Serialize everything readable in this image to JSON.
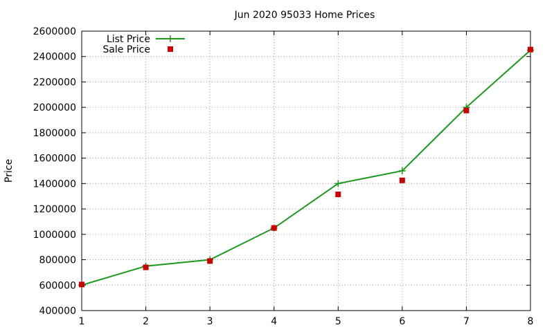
{
  "chart_data": {
    "type": "line",
    "title": "Jun 2020 95033 Home Prices",
    "xlabel": "",
    "ylabel": "Price",
    "x": [
      1,
      2,
      3,
      4,
      5,
      6,
      7,
      8
    ],
    "xlim": [
      1,
      8
    ],
    "ylim": [
      400000,
      2600000
    ],
    "xticks": [
      "1",
      "2",
      "3",
      "4",
      "5",
      "6",
      "7",
      "8"
    ],
    "yticks": [
      "400000",
      "600000",
      "800000",
      "1000000",
      "1200000",
      "1400000",
      "1600000",
      "1800000",
      "2000000",
      "2200000",
      "2400000",
      "2600000"
    ],
    "grid": true,
    "legend_position": "top-left",
    "series": [
      {
        "name": "List Price",
        "style": "line-with-plus-markers",
        "color": "#1a9a1a",
        "values": [
          600000,
          750000,
          800000,
          1050000,
          1400000,
          1500000,
          2000000,
          2450000
        ]
      },
      {
        "name": "Sale Price",
        "style": "square-markers",
        "color": "#cc0000",
        "values": [
          605000,
          740000,
          790000,
          1050000,
          1315000,
          1425000,
          1975000,
          2455000
        ]
      }
    ]
  }
}
